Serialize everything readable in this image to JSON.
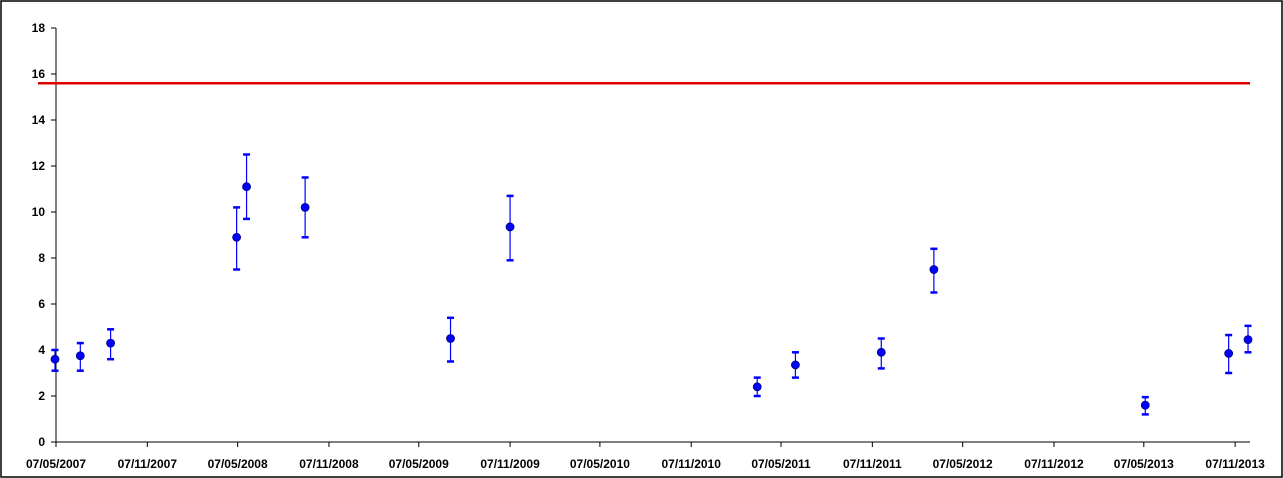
{
  "chart_data": {
    "type": "scatter",
    "title": "",
    "xlabel": "",
    "ylabel": "",
    "ylim": [
      0,
      18
    ],
    "y_ticks": [
      "0",
      "2",
      "4",
      "6",
      "8",
      "10",
      "12",
      "14",
      "16",
      "18"
    ],
    "xlim": [
      "2007-05-07",
      "2013-12-07"
    ],
    "x_ticks": [
      {
        "date": "2007-05-07",
        "label": "07/05/2007"
      },
      {
        "date": "2007-11-07",
        "label": "07/11/2007"
      },
      {
        "date": "2008-05-07",
        "label": "07/05/2008"
      },
      {
        "date": "2008-11-07",
        "label": "07/11/2008"
      },
      {
        "date": "2009-05-07",
        "label": "07/05/2009"
      },
      {
        "date": "2009-11-07",
        "label": "07/11/2009"
      },
      {
        "date": "2010-05-07",
        "label": "07/05/2010"
      },
      {
        "date": "2010-11-07",
        "label": "07/11/2010"
      },
      {
        "date": "2011-05-07",
        "label": "07/05/2011"
      },
      {
        "date": "2011-11-07",
        "label": "07/11/2011"
      },
      {
        "date": "2012-05-07",
        "label": "07/05/2012"
      },
      {
        "date": "2012-11-07",
        "label": "07/11/2012"
      },
      {
        "date": "2013-05-07",
        "label": "07/05/2013"
      },
      {
        "date": "2013-11-07",
        "label": "07/11/2013"
      }
    ],
    "grid": false,
    "legend": "none",
    "reference_line": {
      "y": 15.6,
      "color": "#e00000"
    },
    "series": [
      {
        "color": "#0000ff",
        "points": [
          {
            "x": "2007-05-05",
            "y": 3.6,
            "low": 3.1,
            "high": 4.0
          },
          {
            "x": "2007-06-25",
            "y": 3.75,
            "low": 3.1,
            "high": 4.3
          },
          {
            "x": "2007-08-25",
            "y": 4.3,
            "low": 3.6,
            "high": 4.9
          },
          {
            "x": "2008-05-05",
            "y": 8.9,
            "low": 7.5,
            "high": 10.2
          },
          {
            "x": "2008-05-25",
            "y": 11.1,
            "low": 9.7,
            "high": 12.5
          },
          {
            "x": "2008-09-20",
            "y": 10.2,
            "low": 8.9,
            "high": 11.5
          },
          {
            "x": "2009-07-10",
            "y": 4.5,
            "low": 3.5,
            "high": 5.4
          },
          {
            "x": "2009-11-07",
            "y": 9.35,
            "low": 7.9,
            "high": 10.7
          },
          {
            "x": "2011-03-20",
            "y": 2.4,
            "low": 2.0,
            "high": 2.8
          },
          {
            "x": "2011-06-05",
            "y": 3.35,
            "low": 2.8,
            "high": 3.9
          },
          {
            "x": "2011-11-25",
            "y": 3.9,
            "low": 3.2,
            "high": 4.5
          },
          {
            "x": "2012-03-10",
            "y": 7.5,
            "low": 6.5,
            "high": 8.4
          },
          {
            "x": "2013-05-10",
            "y": 1.6,
            "low": 1.2,
            "high": 1.95
          },
          {
            "x": "2013-10-25",
            "y": 3.85,
            "low": 3.0,
            "high": 4.65
          },
          {
            "x": "2013-12-03",
            "y": 4.45,
            "low": 3.9,
            "high": 5.05
          }
        ]
      }
    ]
  }
}
